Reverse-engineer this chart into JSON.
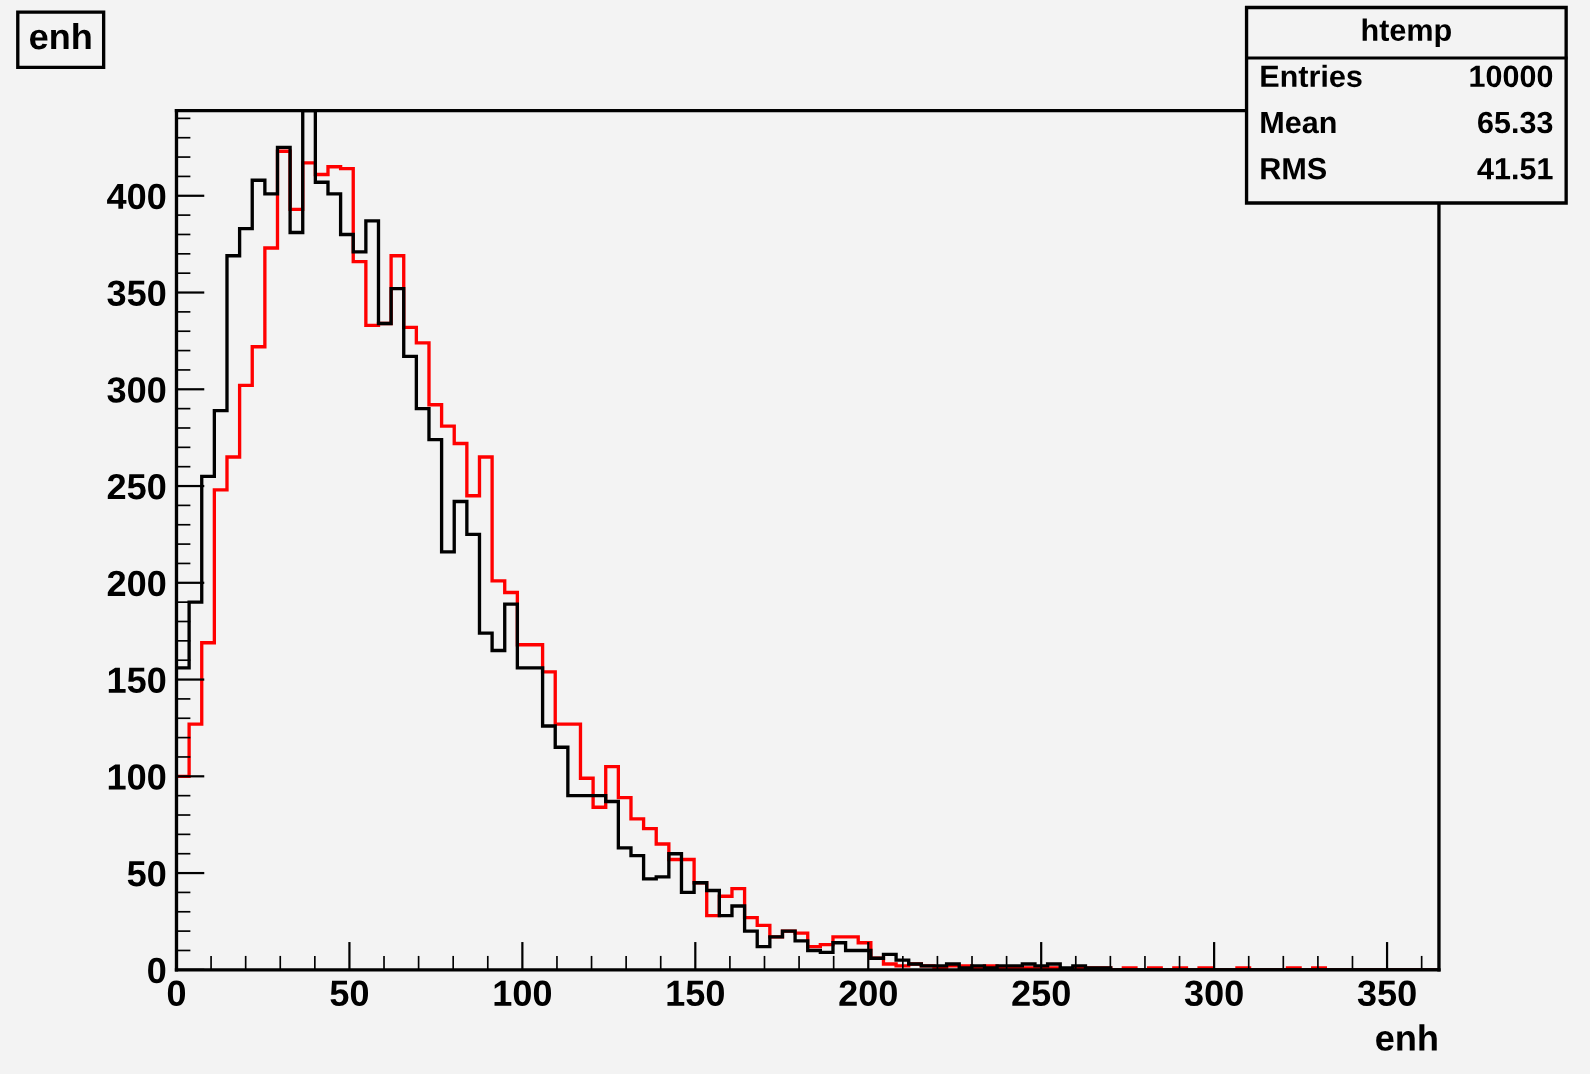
{
  "chart_data": {
    "type": "histogram",
    "title": "enh",
    "xlabel": "enh",
    "bins": [
      0,
      3.65,
      7.3,
      10.95,
      14.6,
      18.25,
      21.9,
      25.55,
      29.2,
      32.85,
      36.5,
      40.15,
      43.8,
      47.45,
      51.1,
      54.75,
      58.4,
      62.05,
      65.7,
      69.35,
      73,
      76.65,
      80.3,
      83.95,
      87.6,
      91.25,
      94.9,
      98.55,
      102.2,
      105.85,
      109.5,
      113.15,
      116.8,
      120.45,
      124.1,
      127.75,
      131.4,
      135.05,
      138.7,
      142.35,
      146,
      149.65,
      153.3,
      156.95,
      160.6,
      164.25,
      167.9,
      171.55,
      175.2,
      178.85,
      182.5,
      186.15,
      189.8,
      193.45,
      197.1,
      200.75,
      204.4,
      208.05,
      211.7,
      215.35,
      219,
      222.65,
      226.3,
      229.95,
      233.6,
      237.25,
      240.9,
      244.55,
      248.2,
      251.85,
      255.5,
      259.15,
      262.8,
      266.45,
      270.1,
      273.75,
      277.4,
      281.05,
      284.7,
      288.35,
      292,
      295.65,
      299.3,
      302.95,
      306.6,
      310.25,
      313.9,
      317.55,
      321.2,
      324.85,
      328.5,
      332.15,
      335.8,
      339.45,
      343.1,
      346.75,
      350.4,
      354.05,
      357.7,
      361.35,
      365
    ],
    "series": [
      {
        "color": "#ff0000",
        "values": [
          100,
          127,
          169,
          248,
          265,
          302,
          322,
          373,
          423,
          393,
          417,
          411,
          415,
          414,
          366,
          333,
          334,
          369,
          332,
          324,
          292,
          281,
          272,
          245,
          265,
          201,
          195,
          168,
          168,
          154,
          127,
          127,
          99,
          84,
          105,
          89,
          78,
          73,
          65,
          57,
          57,
          45,
          28,
          38,
          42,
          27,
          23,
          17,
          20,
          19,
          12,
          13,
          17,
          17,
          14,
          6,
          3,
          2,
          3,
          2,
          1,
          2,
          2,
          1,
          2,
          1,
          1,
          1,
          1,
          1,
          0,
          1,
          1,
          1,
          0,
          1,
          0,
          1,
          0,
          1,
          0,
          1,
          0,
          0,
          1,
          0,
          0,
          0,
          1,
          0,
          1,
          0,
          0,
          0,
          0,
          0,
          0,
          0,
          0,
          0
        ]
      },
      {
        "color": "#000000",
        "values": [
          156,
          190,
          255,
          289,
          369,
          383,
          408,
          401,
          425,
          381,
          444,
          407,
          401,
          380,
          371,
          387,
          334,
          352,
          317,
          290,
          274,
          216,
          242,
          225,
          174,
          165,
          189,
          156,
          156,
          126,
          115,
          90,
          90,
          90,
          87,
          63,
          59,
          47,
          48,
          60,
          40,
          45,
          41,
          28,
          33,
          20,
          12,
          17,
          20,
          15,
          10,
          9,
          14,
          10,
          10,
          6,
          8,
          5,
          3,
          2,
          2,
          3,
          1,
          2,
          1,
          2,
          2,
          3,
          2,
          3,
          1,
          2,
          1,
          1,
          0,
          0,
          0,
          0,
          0,
          0,
          0,
          0,
          0,
          0,
          0,
          0,
          0,
          0,
          0,
          0,
          0,
          0,
          0,
          0,
          0,
          0,
          0,
          0,
          0,
          0
        ]
      }
    ],
    "xlim": [
      0,
      365
    ],
    "ylim": [
      0,
      444
    ],
    "xticks": [
      0,
      50,
      100,
      150,
      200,
      250,
      300,
      350
    ],
    "yticks": [
      0,
      50,
      100,
      150,
      200,
      250,
      300,
      350,
      400
    ],
    "grid": false,
    "annotations": [
      "htemp",
      "Entries 10000",
      "Mean 65.33",
      "RMS 41.51"
    ]
  }
}
